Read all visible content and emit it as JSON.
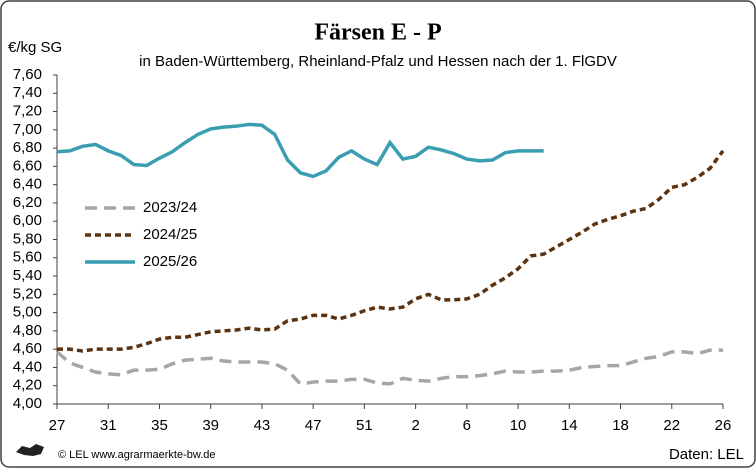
{
  "chart_data": {
    "type": "line",
    "title": "Färsen E - P",
    "subtitle": "in Baden-Württemberg, Rheinland-Pfalz und Hessen nach der 1. FlGDV",
    "y_label": "€/kg SG",
    "source": "© LEL www.agrarmaerkte-bw.de",
    "credit": "Daten: LEL",
    "categories": [
      "27",
      null,
      null,
      null,
      "31",
      null,
      null,
      null,
      "35",
      null,
      null,
      null,
      "39",
      null,
      null,
      null,
      "43",
      null,
      null,
      null,
      "47",
      null,
      null,
      null,
      "51",
      null,
      null,
      null,
      "2",
      null,
      null,
      null,
      "6",
      null,
      null,
      null,
      "10",
      null,
      null,
      null,
      "14",
      null,
      null,
      null,
      "18",
      null,
      null,
      null,
      "22",
      null,
      null,
      null,
      "26"
    ],
    "ylim": [
      4.0,
      7.6
    ],
    "yticks": [
      {
        "value": 4.0,
        "label": "4,00"
      },
      {
        "value": 4.2,
        "label": "4,20"
      },
      {
        "value": 4.4,
        "label": "4,40"
      },
      {
        "value": 4.6,
        "label": "4,60"
      },
      {
        "value": 4.8,
        "label": "4,80"
      },
      {
        "value": 5.0,
        "label": "5,00"
      },
      {
        "value": 5.2,
        "label": "5,20"
      },
      {
        "value": 5.4,
        "label": "5,40"
      },
      {
        "value": 5.6,
        "label": "5,60"
      },
      {
        "value": 5.8,
        "label": "5,80"
      },
      {
        "value": 6.0,
        "label": "6,00"
      },
      {
        "value": 6.2,
        "label": "6,20"
      },
      {
        "value": 6.4,
        "label": "6,40"
      },
      {
        "value": 6.6,
        "label": "6,60"
      },
      {
        "value": 6.8,
        "label": "6,80"
      },
      {
        "value": 7.0,
        "label": "7,00"
      },
      {
        "value": 7.2,
        "label": "7,20"
      },
      {
        "value": 7.4,
        "label": "7,40"
      },
      {
        "value": 7.6,
        "label": "7,60"
      }
    ],
    "series": [
      {
        "name": "2023/24",
        "color": "#a6a6a6",
        "style": "dashed",
        "values": [
          4.57,
          4.45,
          4.4,
          4.35,
          4.33,
          4.32,
          4.37,
          4.37,
          4.38,
          4.44,
          4.48,
          4.49,
          4.5,
          4.47,
          4.46,
          4.46,
          4.46,
          4.44,
          4.37,
          4.22,
          4.24,
          4.25,
          4.25,
          4.27,
          4.27,
          4.23,
          4.22,
          4.28,
          4.26,
          4.25,
          4.28,
          4.3,
          4.3,
          4.31,
          4.33,
          4.36,
          4.35,
          4.35,
          4.36,
          4.36,
          4.37,
          4.4,
          4.41,
          4.42,
          4.42,
          4.46,
          4.5,
          4.52,
          4.57,
          4.57,
          4.55,
          4.59,
          4.59
        ]
      },
      {
        "name": "2024/25",
        "color": "#5c3311",
        "style": "dotted",
        "values": [
          4.6,
          4.6,
          4.58,
          4.6,
          4.6,
          4.6,
          4.62,
          4.66,
          4.71,
          4.73,
          4.73,
          4.76,
          4.79,
          4.8,
          4.81,
          4.83,
          4.81,
          4.82,
          4.91,
          4.93,
          4.97,
          4.97,
          4.93,
          4.97,
          5.02,
          5.06,
          5.04,
          5.06,
          5.15,
          5.2,
          5.14,
          5.14,
          5.15,
          5.2,
          5.3,
          5.38,
          5.48,
          5.62,
          5.64,
          5.72,
          5.8,
          5.88,
          5.97,
          6.02,
          6.06,
          6.11,
          6.14,
          6.24,
          6.37,
          6.4,
          6.48,
          6.58,
          6.77
        ]
      },
      {
        "name": "2025/26",
        "color": "#3a9eb3",
        "style": "solid",
        "values": [
          6.76,
          6.77,
          6.82,
          6.84,
          6.77,
          6.72,
          6.62,
          6.61,
          6.69,
          6.76,
          6.86,
          6.95,
          7.01,
          7.03,
          7.04,
          7.06,
          7.05,
          6.95,
          6.67,
          6.53,
          6.49,
          6.55,
          6.7,
          6.77,
          6.68,
          6.62,
          6.86,
          6.68,
          6.71,
          6.81,
          6.78,
          6.74,
          6.68,
          6.66,
          6.67,
          6.75,
          6.77,
          6.77,
          6.77,
          null,
          null,
          null,
          null,
          null,
          null,
          null,
          null,
          null,
          null,
          null,
          null,
          null,
          null
        ]
      }
    ]
  }
}
